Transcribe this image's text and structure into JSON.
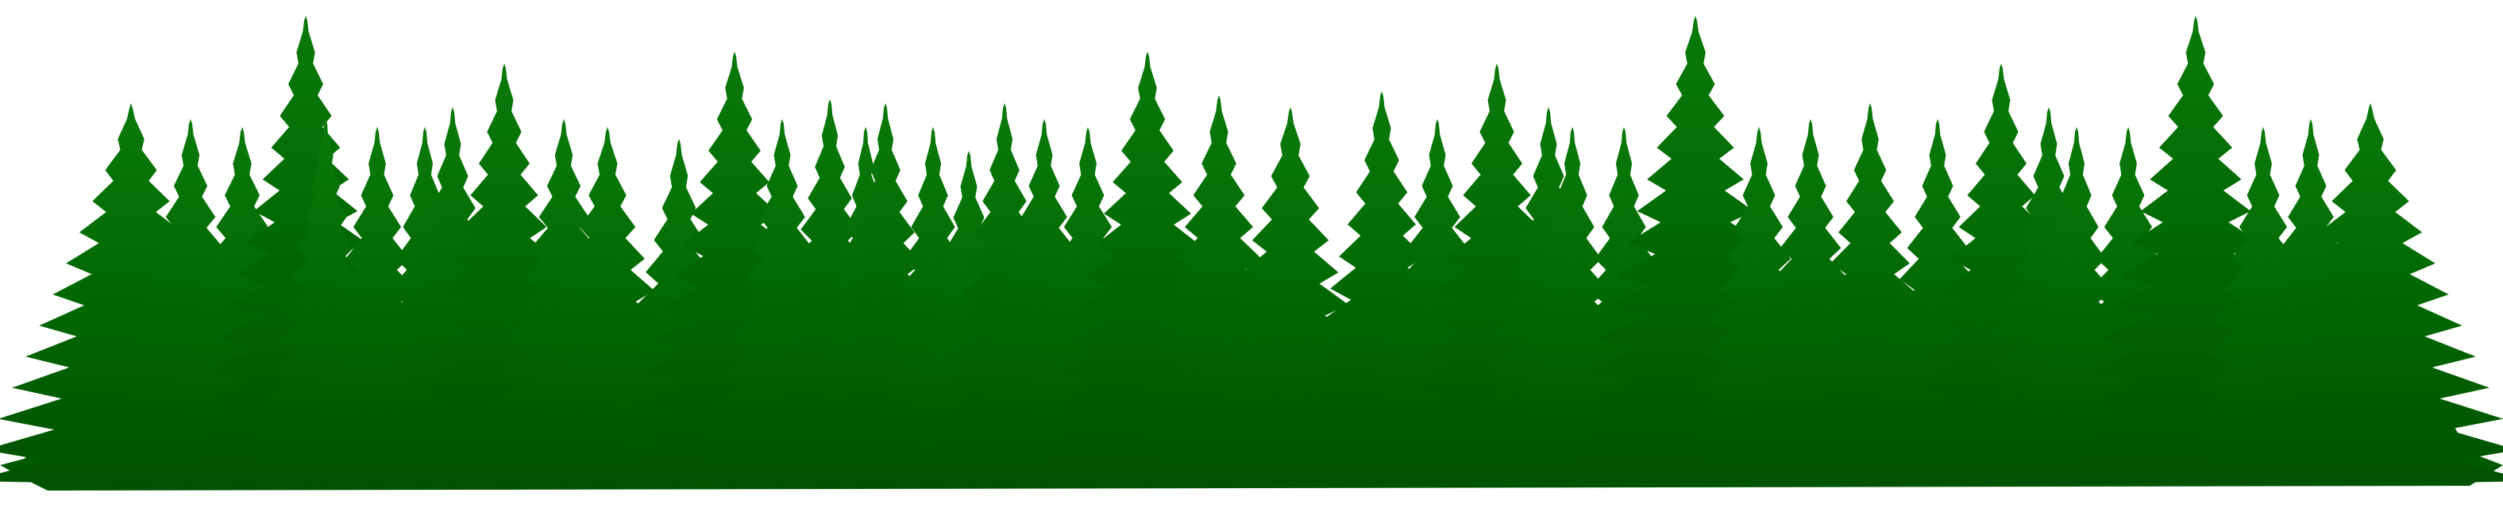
{
  "colors": {
    "background": "#ffffff",
    "forest_dark": "#005200",
    "forest_light": "#0a7a0a"
  },
  "scene": {
    "subject": "forest-silhouette-icon"
  }
}
